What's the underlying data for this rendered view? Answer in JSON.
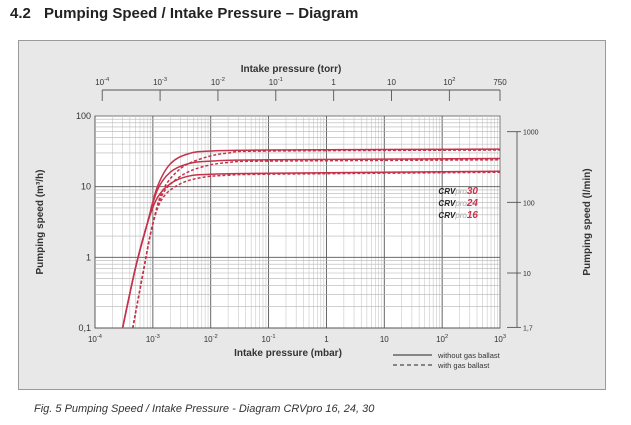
{
  "section": {
    "number": "4.2",
    "title": "Pumping Speed / Intake Pressure – Diagram"
  },
  "caption": "Fig. 5  Pumping Speed / Intake Pressure - Diagram CRVpro 16, 24, 30",
  "chart_data": {
    "type": "line",
    "title": "Pumping Speed / Intake Pressure – Diagram",
    "x_scale": "log",
    "y_scale": "log",
    "xlim_mbar": [
      0.0001,
      1000
    ],
    "ylim_m3h": [
      0.1,
      100
    ],
    "xlabel": "Intake pressure (mbar)",
    "xlabel_top": "Intake pressure (torr)",
    "ylabel": "Pumping speed (m³/h)",
    "ylabel_right": "Pumping speed (l/min)",
    "x_ticks_bottom": [
      {
        "value": 0.0001,
        "base": "10",
        "exp": "-4"
      },
      {
        "value": 0.001,
        "base": "10",
        "exp": "-3"
      },
      {
        "value": 0.01,
        "base": "10",
        "exp": "-2"
      },
      {
        "value": 0.1,
        "base": "10",
        "exp": "-1"
      },
      {
        "value": 1,
        "base": "1",
        "exp": ""
      },
      {
        "value": 10,
        "base": "10",
        "exp": ""
      },
      {
        "value": 100,
        "base": "10",
        "exp": "2"
      },
      {
        "value": 1000,
        "base": "10",
        "exp": "3"
      }
    ],
    "x_ticks_top_torr": [
      {
        "value": 0.0001,
        "base": "10",
        "exp": "-4"
      },
      {
        "value": 0.001,
        "base": "10",
        "exp": "-3"
      },
      {
        "value": 0.01,
        "base": "10",
        "exp": "-2"
      },
      {
        "value": 0.1,
        "base": "10",
        "exp": "-1"
      },
      {
        "value": 1,
        "base": "1",
        "exp": ""
      },
      {
        "value": 10,
        "base": "10",
        "exp": ""
      },
      {
        "value": 100,
        "base": "10",
        "exp": "2"
      },
      {
        "value": 750,
        "base": "750",
        "exp": ""
      }
    ],
    "y_ticks_left": [
      {
        "value": 0.1,
        "label": "0,1"
      },
      {
        "value": 1,
        "label": "1"
      },
      {
        "value": 10,
        "label": "10"
      },
      {
        "value": 100,
        "label": "100"
      }
    ],
    "y_ticks_right_lmin": [
      {
        "value": 1.7,
        "label": "1,7"
      },
      {
        "value": 10,
        "label": "10"
      },
      {
        "value": 100,
        "label": "100"
      },
      {
        "value": 1000,
        "label": "1000"
      }
    ],
    "series": [
      {
        "name": "CRVpro 30",
        "dash": false,
        "points": [
          [
            0.0003,
            0.1
          ],
          [
            0.0005,
            0.7
          ],
          [
            0.0008,
            3.0
          ],
          [
            0.0012,
            10
          ],
          [
            0.002,
            21
          ],
          [
            0.004,
            29
          ],
          [
            0.01,
            32
          ],
          [
            0.1,
            33
          ],
          [
            1000,
            34
          ]
        ]
      },
      {
        "name": "CRVpro 24",
        "dash": false,
        "points": [
          [
            0.0003,
            0.1
          ],
          [
            0.0005,
            0.7
          ],
          [
            0.0008,
            3.0
          ],
          [
            0.0012,
            9
          ],
          [
            0.002,
            16
          ],
          [
            0.004,
            21
          ],
          [
            0.01,
            23
          ],
          [
            0.1,
            24
          ],
          [
            1000,
            25
          ]
        ]
      },
      {
        "name": "CRVpro 16",
        "dash": false,
        "points": [
          [
            0.0003,
            0.1
          ],
          [
            0.0005,
            0.7
          ],
          [
            0.0008,
            3.0
          ],
          [
            0.0012,
            7
          ],
          [
            0.002,
            11
          ],
          [
            0.004,
            14
          ],
          [
            0.01,
            15
          ],
          [
            0.1,
            15.5
          ],
          [
            1000,
            16.5
          ]
        ]
      },
      {
        "name": "CRVpro 30 (gas ballast)",
        "dash": true,
        "points": [
          [
            0.00045,
            0.1
          ],
          [
            0.0007,
            0.7
          ],
          [
            0.001,
            3.0
          ],
          [
            0.0015,
            9
          ],
          [
            0.003,
            18
          ],
          [
            0.007,
            25
          ],
          [
            0.02,
            30
          ],
          [
            0.1,
            32
          ],
          [
            1000,
            33
          ]
        ]
      },
      {
        "name": "CRVpro 24 (gas ballast)",
        "dash": true,
        "points": [
          [
            0.00045,
            0.1
          ],
          [
            0.0007,
            0.7
          ],
          [
            0.001,
            3.0
          ],
          [
            0.0015,
            8
          ],
          [
            0.003,
            14
          ],
          [
            0.007,
            19
          ],
          [
            0.02,
            22
          ],
          [
            0.1,
            23
          ],
          [
            1000,
            24
          ]
        ]
      },
      {
        "name": "CRVpro 16 (gas ballast)",
        "dash": true,
        "points": [
          [
            0.00045,
            0.1
          ],
          [
            0.0007,
            0.7
          ],
          [
            0.001,
            3.0
          ],
          [
            0.0015,
            7
          ],
          [
            0.003,
            11
          ],
          [
            0.007,
            13.5
          ],
          [
            0.02,
            14.5
          ],
          [
            0.1,
            15
          ],
          [
            1000,
            16
          ]
        ]
      }
    ],
    "model_labels": [
      {
        "prefix": "CRV",
        "mid": "pro",
        "size": "30"
      },
      {
        "prefix": "CRV",
        "mid": "pro",
        "size": "24"
      },
      {
        "prefix": "CRV",
        "mid": "pro",
        "size": "16"
      }
    ],
    "legend": [
      {
        "label": "without gas ballast",
        "dash": false
      },
      {
        "label": "with gas ballast",
        "dash": true
      }
    ],
    "colors": {
      "curve": "#c4334b",
      "grid": "#9a9a9a",
      "axis": "#555555",
      "accent": "#c4334b"
    }
  }
}
